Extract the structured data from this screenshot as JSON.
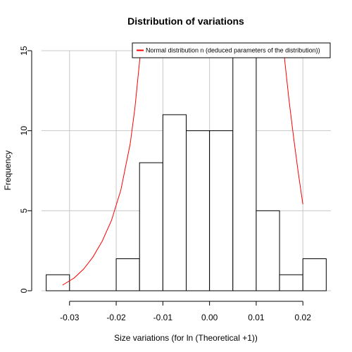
{
  "chart_data": {
    "type": "bar",
    "title": "Distribution of variations",
    "xlabel": "Size variations (for ln (Theoretical +1))",
    "ylabel": "Frequency",
    "xlim": [
      -0.036,
      0.026
    ],
    "ylim": [
      0,
      15
    ],
    "xticks": [
      -0.03,
      -0.02,
      -0.01,
      0.0,
      0.01,
      0.02
    ],
    "xtick_labels": [
      "-0.03",
      "-0.02",
      "-0.01",
      "0.00",
      "0.01",
      "0.02"
    ],
    "yticks": [
      0,
      5,
      10,
      15
    ],
    "ytick_labels": [
      "0",
      "5",
      "10",
      "15"
    ],
    "grid": true,
    "histogram": {
      "bin_width": 0.005,
      "bins": [
        {
          "start": -0.035,
          "end": -0.03,
          "count": 1
        },
        {
          "start": -0.03,
          "end": -0.025,
          "count": 0
        },
        {
          "start": -0.025,
          "end": -0.02,
          "count": 0
        },
        {
          "start": -0.02,
          "end": -0.015,
          "count": 2
        },
        {
          "start": -0.015,
          "end": -0.01,
          "count": 8
        },
        {
          "start": -0.01,
          "end": -0.005,
          "count": 11
        },
        {
          "start": -0.005,
          "end": 0.0,
          "count": 10
        },
        {
          "start": 0.0,
          "end": 0.005,
          "count": 10
        },
        {
          "start": 0.005,
          "end": 0.01,
          "count": 16
        },
        {
          "start": 0.01,
          "end": 0.015,
          "count": 5
        },
        {
          "start": 0.015,
          "end": 0.02,
          "count": 1
        },
        {
          "start": 0.02,
          "end": 0.025,
          "count": 2
        }
      ]
    },
    "series": [
      {
        "name": "Normal distribution  n (deduced parameters of the distribution))",
        "type": "line",
        "color": "#ff0000",
        "x": [
          -0.0315,
          -0.029,
          -0.027,
          -0.025,
          -0.023,
          -0.021,
          -0.019,
          -0.017,
          -0.016,
          -0.015,
          -0.0145,
          0.0155,
          0.016,
          0.017,
          0.018,
          0.019,
          0.02
        ],
        "y": [
          0.35,
          0.8,
          1.35,
          2.1,
          3.1,
          4.4,
          6.3,
          9.2,
          11.4,
          14.3,
          15.6,
          15.6,
          14.7,
          12.0,
          9.6,
          7.4,
          5.4
        ]
      }
    ],
    "legend": {
      "position": "top-right",
      "entries": [
        "Normal distribution  n (deduced parameters of the distribution))"
      ]
    }
  }
}
